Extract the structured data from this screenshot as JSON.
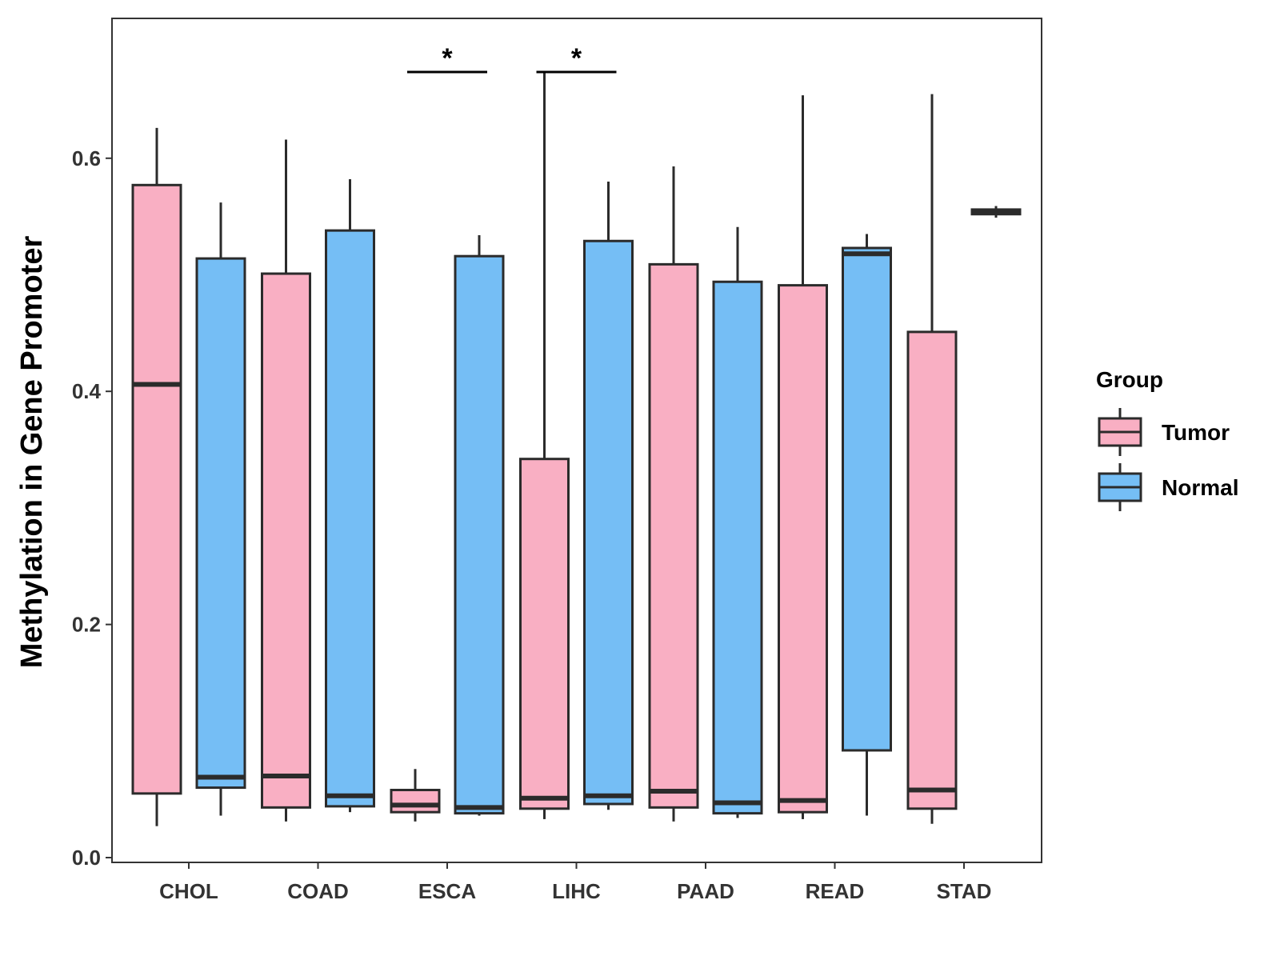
{
  "chart_data": {
    "type": "boxplot",
    "title": "",
    "xlabel": "",
    "ylabel": "Methylation in Gene Promoter",
    "ylim": [
      -0.005,
      0.72
    ],
    "yticks": [
      0.0,
      0.2,
      0.4,
      0.6
    ],
    "ytick_labels": [
      "0.0",
      "0.2",
      "0.4",
      "0.6"
    ],
    "categories": [
      "CHOL",
      "COAD",
      "ESCA",
      "LIHC",
      "PAAD",
      "READ",
      "STAD"
    ],
    "legend": {
      "title": "Group",
      "position": "right",
      "entries": [
        {
          "name": "Tumor",
          "color": "#F9AFC3"
        },
        {
          "name": "Normal",
          "color": "#75BEF5"
        }
      ]
    },
    "series": [
      {
        "name": "Tumor",
        "color": "#F9AFC3",
        "boxes": [
          {
            "category": "CHOL",
            "min": 0.027,
            "q1": 0.055,
            "median": 0.406,
            "q3": 0.577,
            "max": 0.626
          },
          {
            "category": "COAD",
            "min": 0.031,
            "q1": 0.043,
            "median": 0.07,
            "q3": 0.501,
            "max": 0.616
          },
          {
            "category": "ESCA",
            "min": 0.031,
            "q1": 0.039,
            "median": 0.045,
            "q3": 0.058,
            "max": 0.076
          },
          {
            "category": "LIHC",
            "min": 0.033,
            "q1": 0.042,
            "median": 0.051,
            "q3": 0.342,
            "max": 0.675
          },
          {
            "category": "PAAD",
            "min": 0.031,
            "q1": 0.043,
            "median": 0.057,
            "q3": 0.509,
            "max": 0.593
          },
          {
            "category": "READ",
            "min": 0.033,
            "q1": 0.039,
            "median": 0.049,
            "q3": 0.491,
            "max": 0.654
          },
          {
            "category": "STAD",
            "min": 0.029,
            "q1": 0.042,
            "median": 0.058,
            "q3": 0.451,
            "max": 0.655
          }
        ]
      },
      {
        "name": "Normal",
        "color": "#75BEF5",
        "boxes": [
          {
            "category": "CHOL",
            "min": 0.036,
            "q1": 0.06,
            "median": 0.069,
            "q3": 0.514,
            "max": 0.562
          },
          {
            "category": "COAD",
            "min": 0.039,
            "q1": 0.044,
            "median": 0.053,
            "q3": 0.538,
            "max": 0.582
          },
          {
            "category": "ESCA",
            "min": 0.036,
            "q1": 0.038,
            "median": 0.043,
            "q3": 0.516,
            "max": 0.534
          },
          {
            "category": "LIHC",
            "min": 0.041,
            "q1": 0.046,
            "median": 0.053,
            "q3": 0.529,
            "max": 0.58
          },
          {
            "category": "PAAD",
            "min": 0.034,
            "q1": 0.038,
            "median": 0.047,
            "q3": 0.494,
            "max": 0.541
          },
          {
            "category": "READ",
            "min": 0.036,
            "q1": 0.092,
            "median": 0.518,
            "q3": 0.523,
            "max": 0.535
          },
          {
            "category": "STAD",
            "min": 0.549,
            "q1": 0.552,
            "median": 0.554,
            "q3": 0.556,
            "max": 0.559
          }
        ]
      }
    ],
    "annotations": [
      {
        "category": "ESCA",
        "label": "*",
        "y": 0.674
      },
      {
        "category": "LIHC",
        "label": "*",
        "y": 0.674
      }
    ]
  }
}
